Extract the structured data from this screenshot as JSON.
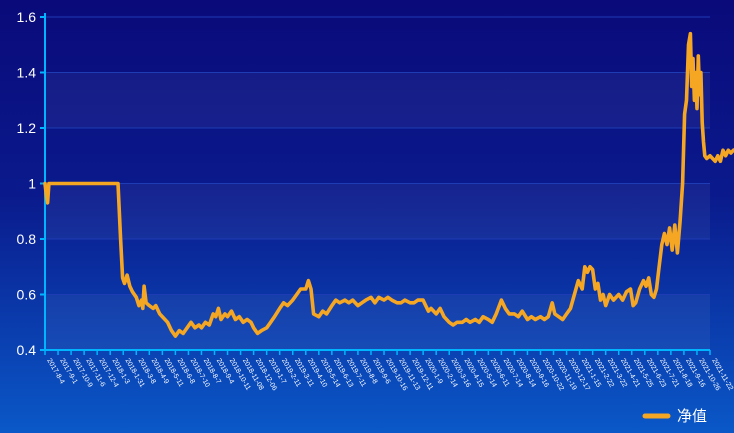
{
  "chart_data": {
    "type": "line",
    "title": "",
    "xlabel": "",
    "ylabel": "",
    "ylim": [
      0.4,
      1.6
    ],
    "yticks": [
      "0.4",
      "0.6",
      "0.8",
      "1",
      "1.2",
      "1.4",
      "1.6"
    ],
    "grid": true,
    "legend_position": "bottom-right",
    "colors": {
      "series": "#f5a623",
      "axis": "#00b4ff",
      "grid": "#1e3cb4",
      "text": "#ffffff"
    },
    "categories": [
      "2017-8-4",
      "2017-9-1",
      "2017-10-9",
      "2017-11-6",
      "2017-12-4",
      "2018-1-3",
      "2018-1-31",
      "2018-3-8",
      "2018-4-9",
      "2018-5-11",
      "2018-6-8",
      "2018-7-10",
      "2018-8-7",
      "2018-9-4",
      "2018-10-11",
      "2018-11-08",
      "2018-12-06",
      "2019-1-7",
      "2019-2-11",
      "2019-3-11",
      "2019-4-10",
      "2019-5-14",
      "2019-6-13",
      "2019-7-11",
      "2019-8-8",
      "2019-9-6",
      "2019-10-16",
      "2019-11-13",
      "2019-12-11",
      "2020-1-9",
      "2020-2-14",
      "2020-3-16",
      "2020-4-15",
      "2020-5-14",
      "2020-6-11",
      "2020-7-14",
      "2020-8-14",
      "2020-9-16",
      "2020-10-22",
      "2020-11-19",
      "2020-12-17",
      "2021-1-15",
      "2021-2-22",
      "2021-3-22",
      "2021-4-21",
      "2021-5-25",
      "2021-6-23",
      "2021-7-21",
      "2021-8-18",
      "2021-9-16",
      "2021-10-26",
      "2021-11-22"
    ],
    "series": [
      {
        "name": "净值",
        "points": [
          [
            0,
            1.0
          ],
          [
            0.12,
            0.95
          ],
          [
            0.2,
            0.93
          ],
          [
            0.3,
            1.0
          ],
          [
            1,
            1.0
          ],
          [
            2,
            1.0
          ],
          [
            3,
            1.0
          ],
          [
            4,
            1.0
          ],
          [
            5,
            1.0
          ],
          [
            5.6,
            1.0
          ],
          [
            5.8,
            0.8
          ],
          [
            5.95,
            0.66
          ],
          [
            6.1,
            0.64
          ],
          [
            6.3,
            0.67
          ],
          [
            6.5,
            0.63
          ],
          [
            6.7,
            0.61
          ],
          [
            7,
            0.59
          ],
          [
            7.2,
            0.56
          ],
          [
            7.4,
            0.58
          ],
          [
            7.5,
            0.55
          ],
          [
            7.6,
            0.63
          ],
          [
            7.75,
            0.57
          ],
          [
            8,
            0.56
          ],
          [
            8.3,
            0.55
          ],
          [
            8.5,
            0.56
          ],
          [
            8.8,
            0.53
          ],
          [
            9,
            0.52
          ],
          [
            9.4,
            0.5
          ],
          [
            9.7,
            0.47
          ],
          [
            10,
            0.45
          ],
          [
            10.3,
            0.47
          ],
          [
            10.6,
            0.46
          ],
          [
            10.9,
            0.48
          ],
          [
            11.2,
            0.5
          ],
          [
            11.5,
            0.48
          ],
          [
            11.8,
            0.49
          ],
          [
            12,
            0.48
          ],
          [
            12.3,
            0.5
          ],
          [
            12.6,
            0.49
          ],
          [
            12.9,
            0.53
          ],
          [
            13.1,
            0.52
          ],
          [
            13.3,
            0.55
          ],
          [
            13.5,
            0.51
          ],
          [
            13.8,
            0.53
          ],
          [
            14,
            0.52
          ],
          [
            14.3,
            0.54
          ],
          [
            14.6,
            0.51
          ],
          [
            14.9,
            0.52
          ],
          [
            15.2,
            0.5
          ],
          [
            15.5,
            0.51
          ],
          [
            15.8,
            0.5
          ],
          [
            16,
            0.48
          ],
          [
            16.3,
            0.46
          ],
          [
            16.6,
            0.47
          ],
          [
            17,
            0.48
          ],
          [
            17.3,
            0.5
          ],
          [
            17.6,
            0.52
          ],
          [
            18,
            0.55
          ],
          [
            18.3,
            0.57
          ],
          [
            18.6,
            0.56
          ],
          [
            19,
            0.58
          ],
          [
            19.3,
            0.6
          ],
          [
            19.6,
            0.62
          ],
          [
            20,
            0.62
          ],
          [
            20.2,
            0.65
          ],
          [
            20.4,
            0.62
          ],
          [
            20.6,
            0.53
          ],
          [
            21,
            0.52
          ],
          [
            21.3,
            0.54
          ],
          [
            21.6,
            0.53
          ],
          [
            22,
            0.56
          ],
          [
            22.3,
            0.58
          ],
          [
            22.6,
            0.57
          ],
          [
            23,
            0.58
          ],
          [
            23.3,
            0.57
          ],
          [
            23.6,
            0.58
          ],
          [
            24,
            0.56
          ],
          [
            24.3,
            0.57
          ],
          [
            24.6,
            0.58
          ],
          [
            25,
            0.59
          ],
          [
            25.3,
            0.57
          ],
          [
            25.6,
            0.59
          ],
          [
            26,
            0.58
          ],
          [
            26.3,
            0.59
          ],
          [
            26.6,
            0.58
          ],
          [
            27,
            0.57
          ],
          [
            27.3,
            0.57
          ],
          [
            27.6,
            0.58
          ],
          [
            28,
            0.57
          ],
          [
            28.3,
            0.57
          ],
          [
            28.6,
            0.58
          ],
          [
            29,
            0.58
          ],
          [
            29.2,
            0.56
          ],
          [
            29.4,
            0.54
          ],
          [
            29.6,
            0.55
          ],
          [
            30,
            0.53
          ],
          [
            30.3,
            0.55
          ],
          [
            30.6,
            0.52
          ],
          [
            31,
            0.5
          ],
          [
            31.3,
            0.49
          ],
          [
            31.6,
            0.5
          ],
          [
            32,
            0.5
          ],
          [
            32.3,
            0.51
          ],
          [
            32.6,
            0.5
          ],
          [
            33,
            0.51
          ],
          [
            33.3,
            0.5
          ],
          [
            33.6,
            0.52
          ],
          [
            34,
            0.51
          ],
          [
            34.3,
            0.5
          ],
          [
            34.6,
            0.53
          ],
          [
            35,
            0.58
          ],
          [
            35.3,
            0.55
          ],
          [
            35.6,
            0.53
          ],
          [
            36,
            0.53
          ],
          [
            36.3,
            0.52
          ],
          [
            36.6,
            0.54
          ],
          [
            37,
            0.51
          ],
          [
            37.3,
            0.52
          ],
          [
            37.6,
            0.51
          ],
          [
            38,
            0.52
          ],
          [
            38.3,
            0.51
          ],
          [
            38.6,
            0.52
          ],
          [
            38.9,
            0.57
          ],
          [
            39.1,
            0.53
          ],
          [
            39.4,
            0.52
          ],
          [
            39.7,
            0.51
          ],
          [
            40,
            0.53
          ],
          [
            40.3,
            0.55
          ],
          [
            40.6,
            0.6
          ],
          [
            40.9,
            0.65
          ],
          [
            41.2,
            0.62
          ],
          [
            41.4,
            0.7
          ],
          [
            41.6,
            0.68
          ],
          [
            41.8,
            0.7
          ],
          [
            42,
            0.69
          ],
          [
            42.2,
            0.62
          ],
          [
            42.4,
            0.64
          ],
          [
            42.6,
            0.58
          ],
          [
            42.8,
            0.6
          ],
          [
            43,
            0.56
          ],
          [
            43.3,
            0.6
          ],
          [
            43.6,
            0.58
          ],
          [
            44,
            0.6
          ],
          [
            44.3,
            0.58
          ],
          [
            44.6,
            0.61
          ],
          [
            44.9,
            0.62
          ],
          [
            45.1,
            0.56
          ],
          [
            45.3,
            0.57
          ],
          [
            45.6,
            0.62
          ],
          [
            45.9,
            0.65
          ],
          [
            46.1,
            0.63
          ],
          [
            46.3,
            0.66
          ],
          [
            46.5,
            0.6
          ],
          [
            46.7,
            0.59
          ],
          [
            46.9,
            0.62
          ],
          [
            47.1,
            0.7
          ],
          [
            47.3,
            0.78
          ],
          [
            47.5,
            0.82
          ],
          [
            47.7,
            0.78
          ],
          [
            47.9,
            0.84
          ],
          [
            48.1,
            0.76
          ],
          [
            48.3,
            0.85
          ],
          [
            48.5,
            0.75
          ],
          [
            48.7,
            0.86
          ],
          [
            48.9,
            1.0
          ],
          [
            49.05,
            1.25
          ],
          [
            49.2,
            1.3
          ],
          [
            49.35,
            1.5
          ],
          [
            49.5,
            1.54
          ],
          [
            49.6,
            1.35
          ],
          [
            49.7,
            1.45
          ],
          [
            49.8,
            1.3
          ],
          [
            49.9,
            1.4
          ],
          [
            50,
            1.27
          ],
          [
            50.1,
            1.46
          ],
          [
            50.2,
            1.32
          ],
          [
            50.3,
            1.4
          ],
          [
            50.4,
            1.22
          ],
          [
            50.5,
            1.15
          ],
          [
            50.6,
            1.1
          ],
          [
            50.75,
            1.09
          ],
          [
            51,
            1.1
          ],
          [
            51.2,
            1.09
          ],
          [
            51.4,
            1.08
          ],
          [
            51.6,
            1.1
          ],
          [
            51.8,
            1.08
          ],
          [
            52,
            1.12
          ],
          [
            52.2,
            1.1
          ],
          [
            52.4,
            1.12
          ],
          [
            52.6,
            1.11
          ],
          [
            52.8,
            1.12
          ]
        ]
      }
    ]
  }
}
